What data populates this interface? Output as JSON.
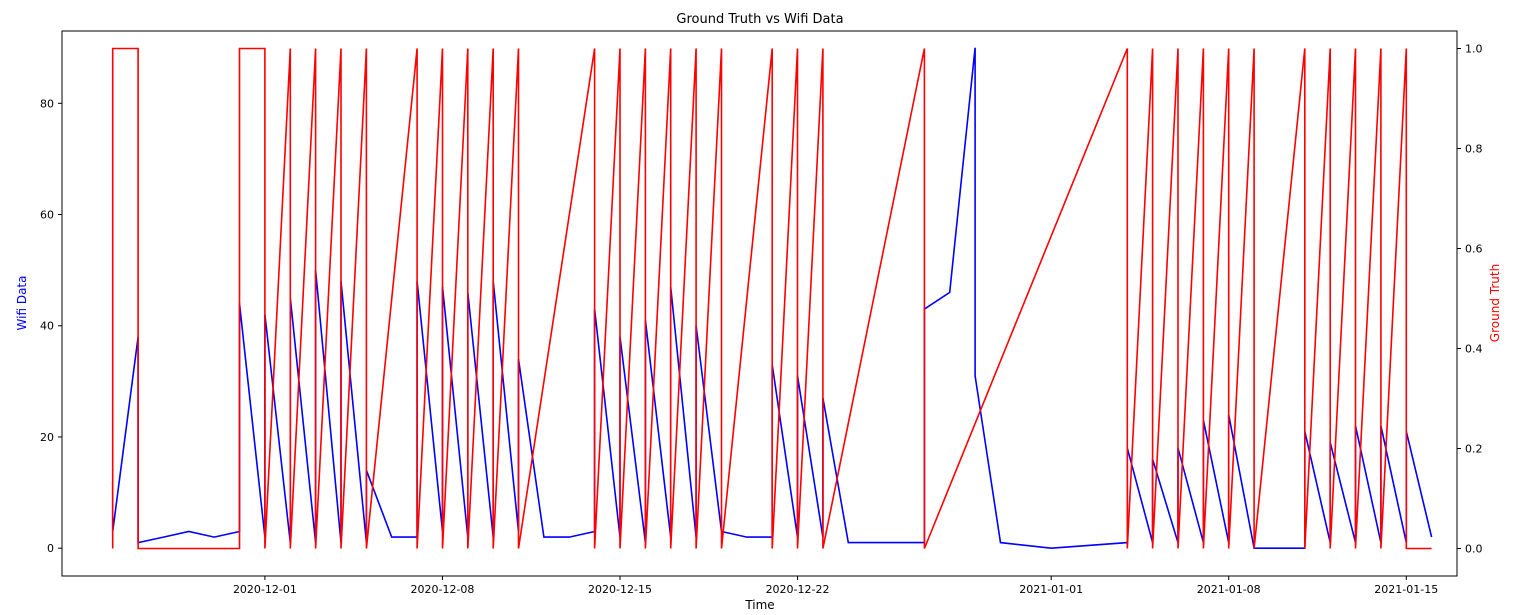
{
  "chart_data": {
    "type": "line",
    "title": "Ground Truth vs Wifi Data",
    "xlabel": "Time",
    "ylabel_left": "Wifi Data",
    "ylabel_right": "Ground Truth",
    "colors": {
      "wifi": "#0000ff",
      "ground_truth": "#ff0000"
    },
    "x_range": [
      "2020-11-23",
      "2021-01-17"
    ],
    "y_left_range": [
      -5,
      93
    ],
    "y_right_range": [
      -0.055,
      1.035
    ],
    "x_ticks": [
      "2020-12-01",
      "2020-12-08",
      "2020-12-15",
      "2020-12-22",
      "2021-01-01",
      "2021-01-08",
      "2021-01-15"
    ],
    "y_left_ticks": [
      0,
      20,
      40,
      60,
      80
    ],
    "y_right_ticks": [
      "0.0",
      "0.2",
      "0.4",
      "0.6",
      "0.8",
      "1.0"
    ],
    "grid": false,
    "series": [
      {
        "name": "Wifi Data",
        "axis": "left",
        "x": [
          "2020-11-25",
          "2020-11-25",
          "2020-11-26",
          "2020-11-26",
          "2020-11-26",
          "2020-11-26",
          "2020-11-27",
          "2020-11-28",
          "2020-11-29",
          "2020-11-30",
          "2020-11-30",
          "2020-12-01",
          "2020-12-01",
          "2020-12-02",
          "2020-12-02",
          "2020-12-03",
          "2020-12-03",
          "2020-12-04",
          "2020-12-04",
          "2020-12-05",
          "2020-12-05",
          "2020-12-06",
          "2020-12-07",
          "2020-12-07",
          "2020-12-08",
          "2020-12-08",
          "2020-12-09",
          "2020-12-09",
          "2020-12-10",
          "2020-12-10",
          "2020-12-11",
          "2020-12-11",
          "2020-12-12",
          "2020-12-13",
          "2020-12-14",
          "2020-12-14",
          "2020-12-15",
          "2020-12-15",
          "2020-12-16",
          "2020-12-16",
          "2020-12-17",
          "2020-12-17",
          "2020-12-18",
          "2020-12-18",
          "2020-12-19",
          "2020-12-20",
          "2020-12-21",
          "2020-12-21",
          "2020-12-22",
          "2020-12-22",
          "2020-12-23",
          "2020-12-23",
          "2020-12-24",
          "2020-12-26",
          "2020-12-27",
          "2020-12-27",
          "2020-12-28",
          "2020-12-28",
          "2020-12-29",
          "2020-12-29",
          "2020-12-30",
          "2021-01-01",
          "2021-01-04",
          "2021-01-04",
          "2021-01-05",
          "2021-01-05",
          "2021-01-06",
          "2021-01-06",
          "2021-01-07",
          "2021-01-07",
          "2021-01-08",
          "2021-01-08",
          "2021-01-09",
          "2021-01-10",
          "2021-01-11",
          "2021-01-11",
          "2021-01-12",
          "2021-01-12",
          "2021-01-13",
          "2021-01-13",
          "2021-01-14",
          "2021-01-14",
          "2021-01-15",
          "2021-01-15",
          "2021-01-16"
        ],
        "y": [
          12,
          3,
          38,
          18,
          1,
          1,
          2,
          3,
          2,
          3,
          44,
          2,
          42,
          1,
          45,
          1,
          50,
          1,
          48,
          1,
          14,
          2,
          2,
          48,
          3,
          47,
          2,
          46,
          2,
          48,
          3,
          34,
          2,
          2,
          3,
          43,
          2,
          38,
          1,
          41,
          2,
          47,
          2,
          40,
          3,
          2,
          2,
          33,
          2,
          31,
          2,
          27,
          1,
          1,
          1,
          43,
          46,
          46,
          90,
          31,
          1,
          0,
          1,
          18,
          1,
          16,
          1,
          18,
          1,
          23,
          1,
          24,
          0,
          0,
          0,
          21,
          1,
          19,
          1,
          22,
          1,
          22,
          1,
          21,
          2
        ]
      },
      {
        "name": "Ground Truth",
        "axis": "right",
        "x": [
          "2020-11-25",
          "2020-11-25",
          "2020-11-26",
          "2020-11-26",
          "2020-11-30",
          "2020-11-30",
          "2020-12-01",
          "2020-12-01",
          "2020-12-02",
          "2020-12-02",
          "2020-12-03",
          "2020-12-03",
          "2020-12-04",
          "2020-12-04",
          "2020-12-05",
          "2020-12-05",
          "2020-12-07",
          "2020-12-07",
          "2020-12-08",
          "2020-12-08",
          "2020-12-09",
          "2020-12-09",
          "2020-12-10",
          "2020-12-10",
          "2020-12-11",
          "2020-12-11",
          "2020-12-14",
          "2020-12-14",
          "2020-12-15",
          "2020-12-15",
          "2020-12-16",
          "2020-12-16",
          "2020-12-17",
          "2020-12-17",
          "2020-12-18",
          "2020-12-18",
          "2020-12-19",
          "2020-12-19",
          "2020-12-21",
          "2020-12-21",
          "2020-12-22",
          "2020-12-22",
          "2020-12-23",
          "2020-12-23",
          "2020-12-27",
          "2020-12-27",
          "2021-01-04",
          "2021-01-04",
          "2021-01-05",
          "2021-01-05",
          "2021-01-06",
          "2021-01-06",
          "2021-01-07",
          "2021-01-07",
          "2021-01-08",
          "2021-01-08",
          "2021-01-09",
          "2021-01-09",
          "2021-01-11",
          "2021-01-11",
          "2021-01-12",
          "2021-01-12",
          "2021-01-13",
          "2021-01-13",
          "2021-01-14",
          "2021-01-14",
          "2021-01-15",
          "2021-01-15",
          "2021-01-16"
        ],
        "y": [
          0,
          1,
          1,
          0,
          0,
          1,
          1,
          0,
          1,
          0,
          1,
          0,
          1,
          0,
          1,
          0,
          1,
          0,
          1,
          0,
          1,
          0,
          1,
          0,
          1,
          0,
          1,
          0,
          1,
          0,
          1,
          0,
          1,
          0,
          1,
          0,
          1,
          0,
          1,
          0,
          1,
          0,
          1,
          0,
          1,
          0,
          1,
          0,
          1,
          0,
          1,
          0,
          1,
          0,
          1,
          0,
          1,
          0,
          1,
          0,
          1,
          0,
          1,
          0,
          1,
          0,
          1,
          0,
          0
        ]
      }
    ]
  }
}
